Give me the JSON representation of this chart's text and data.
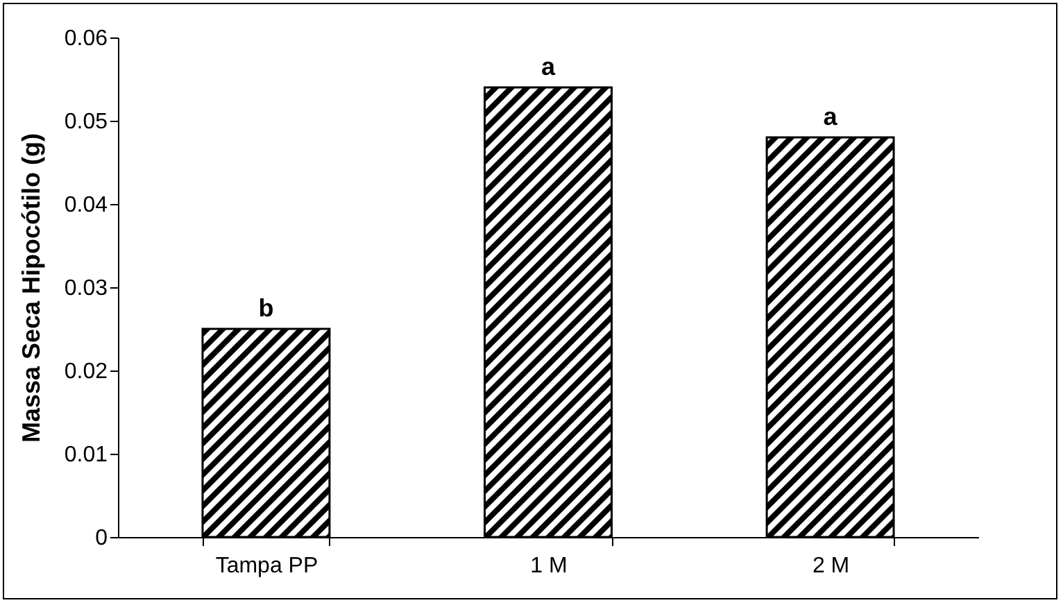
{
  "chart_data": {
    "type": "bar",
    "ylabel": "Massa Seca Hipocótilo (g)",
    "categories": [
      "Tampa PP",
      "1 M",
      "2 M"
    ],
    "series": [
      {
        "color": "#000000",
        "values": [
          0.025,
          0.054,
          0.048
        ]
      }
    ],
    "ylim": [
      0,
      0.06
    ],
    "yticks": [
      0,
      0.01,
      0.02,
      0.03,
      0.04,
      0.05,
      0.06
    ],
    "grid": false,
    "annotations": [
      {
        "text": "b",
        "x": "Tampa PP",
        "y": 0.025
      },
      {
        "text": "a",
        "x": "1 M",
        "y": 0.054
      },
      {
        "text": "a",
        "x": "2 M",
        "y": 0.048
      }
    ]
  }
}
